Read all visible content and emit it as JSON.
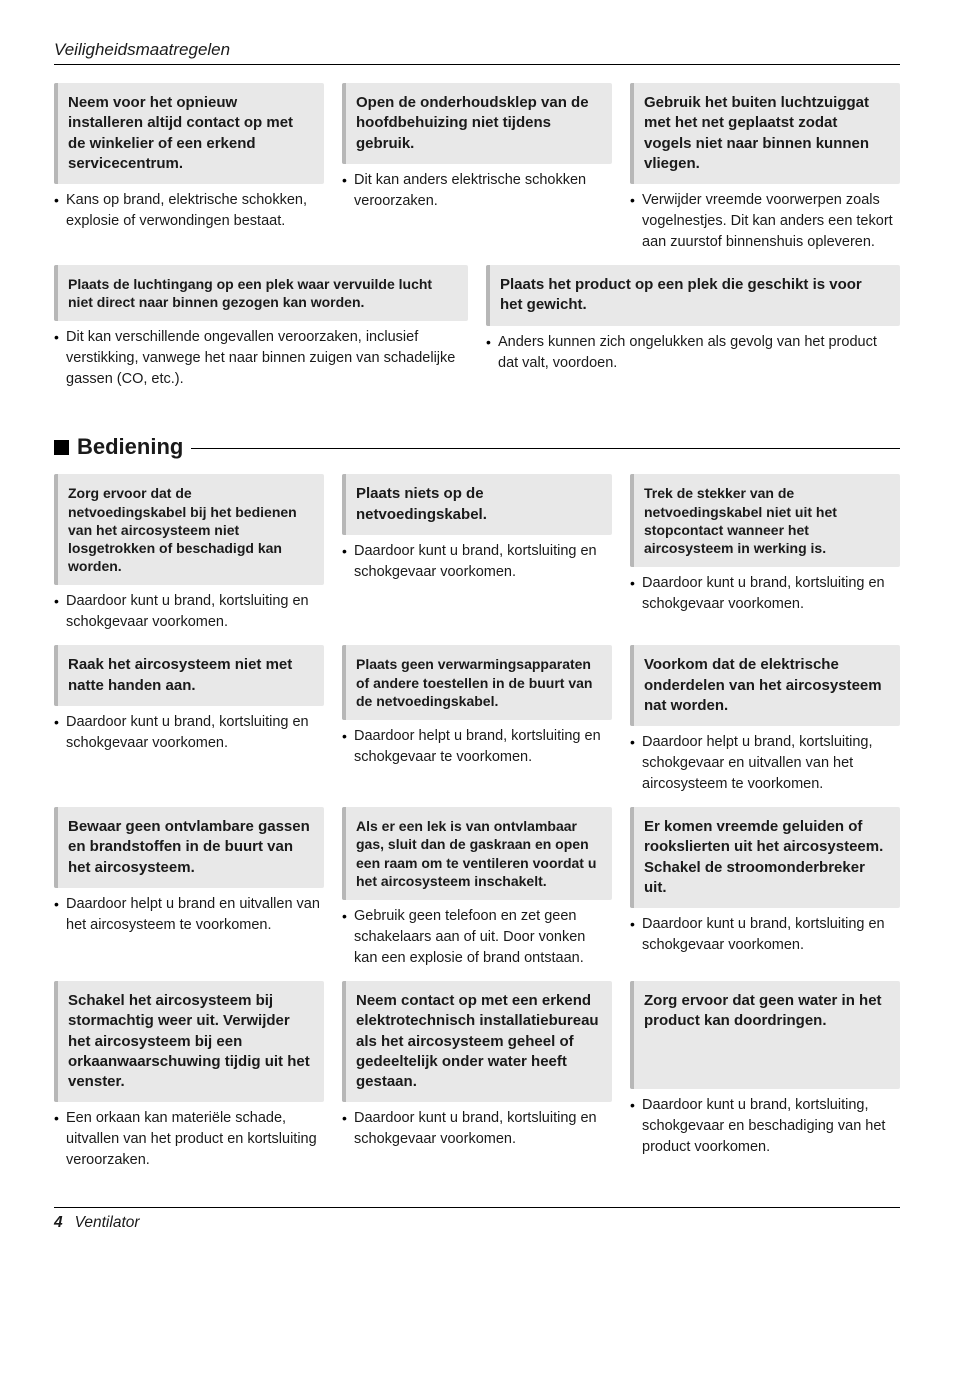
{
  "running_head": "Veiligheidsmaatregelen",
  "top_row": [
    {
      "title": "Neem voor het opnieuw installeren altijd contact op met de winkelier of een erkend servicecentrum.",
      "body": "Kans op brand, elektrische schokken, explosie of verwondingen bestaat."
    },
    {
      "title": "Open de onderhoudsklep van de hoofdbehuizing niet tijdens gebruik.",
      "body": "Dit kan anders elektrische schokken veroorzaken."
    },
    {
      "title": "Gebruik het buiten luchtzuiggat met het net geplaatst zodat vogels niet naar binnen kunnen vliegen.",
      "body": "Verwijder vreemde voorwerpen zoals vogelnestjes. Dit kan anders een tekort aan zuurstof binnenshuis opleveren."
    }
  ],
  "mid_row": [
    {
      "title": "Plaats de luchtingang op een plek waar vervuilde lucht niet direct naar binnen gezogen kan worden.",
      "body": "Dit kan verschillende ongevallen veroorzaken, inclusief verstikking, vanwege het naar binnen zuigen van schadelijke gassen (CO, etc.)."
    },
    {
      "title": "Plaats het product op een plek die geschikt is voor het gewicht.",
      "body": "Anders kunnen zich ongelukken als gevolg van het product dat valt, voordoen."
    }
  ],
  "section_title": "Bediening",
  "b_rows": [
    [
      {
        "title": "Zorg ervoor dat de netvoedingskabel bij het bedienen van het aircosysteem niet losgetrokken of beschadigd kan worden.",
        "body": "Daardoor kunt u brand, kortsluiting en schokgevaar voorkomen."
      },
      {
        "title": "Plaats niets op de netvoedingskabel.",
        "body": "Daardoor kunt u brand, kortsluiting en schokgevaar voorkomen."
      },
      {
        "title": "Trek de stekker van de netvoedingskabel niet uit het stopcontact wanneer het aircosysteem in werking is.",
        "body": "Daardoor kunt u brand, kortsluiting en schokgevaar voorkomen."
      }
    ],
    [
      {
        "title": "Raak het aircosysteem niet met natte handen aan.",
        "body": "Daardoor kunt u brand, kortsluiting en schokgevaar voorkomen."
      },
      {
        "title": "Plaats geen verwarmingsapparaten of andere toestellen in de buurt van de netvoedingskabel.",
        "body": "Daardoor helpt u brand, kortsluiting en schokgevaar te voorkomen."
      },
      {
        "title": "Voorkom dat de elektrische onderdelen van het aircosysteem nat worden.",
        "body": "Daardoor helpt u brand, kortsluiting, schokgevaar en uitvallen van het aircosysteem te voorkomen."
      }
    ],
    [
      {
        "title": "Bewaar geen ontvlambare gassen en brandstoffen in de buurt van het aircosysteem.",
        "body": "Daardoor helpt u brand en uitvallen van het aircosysteem te voorkomen."
      },
      {
        "title": "Als er een lek is van ontvlambaar gas, sluit dan de gaskraan en open een raam om te ventileren voordat u het aircosysteem inschakelt.",
        "body": "Gebruik geen telefoon en zet geen schakelaars aan of uit. Door vonken kan een explosie of brand ontstaan."
      },
      {
        "title": "Er komen vreemde geluiden of rookslierten uit het aircosysteem. Schakel de stroomonderbreker uit.",
        "body": "Daardoor kunt u brand, kortsluiting en schokgevaar voorkomen."
      }
    ],
    [
      {
        "title": "Schakel het aircosysteem bij stormachtig weer uit. Verwijder het aircosysteem bij een orkaanwaarschuwing tijdig uit het venster.",
        "body": "Een orkaan kan materiële schade, uitvallen van het product en kortsluiting veroorzaken."
      },
      {
        "title": "Neem contact op met een erkend elektrotechnisch installatiebureau als het aircosysteem geheel of gedeeltelijk onder water heeft gestaan.",
        "body": "Daardoor kunt u brand, kortsluiting en schokgevaar voorkomen."
      },
      {
        "title": "Zorg ervoor dat geen water in het product kan doordringen.",
        "body": "Daardoor kunt u brand, kortsluiting, schokgevaar en beschadiging van het product voorkomen."
      }
    ]
  ],
  "footer": {
    "page": "4",
    "caption": "Ventilator"
  }
}
